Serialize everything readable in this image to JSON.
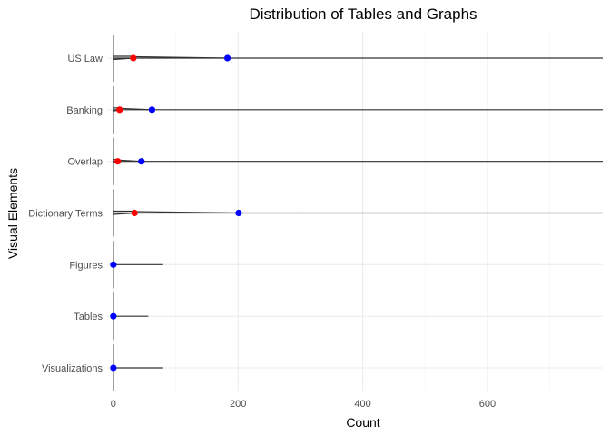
{
  "chart_data": {
    "type": "dot-range",
    "title": "Distribution of Tables and Graphs",
    "xlabel": "Count",
    "ylabel": "Visual Elements",
    "xlim": [
      -10,
      785
    ],
    "x_ticks": [
      0,
      200,
      400,
      600
    ],
    "x_minor_ticks": [
      100,
      300,
      500,
      700
    ],
    "grid": true,
    "categories": [
      "US Law",
      "Banking",
      "Overlap",
      "Dictionary Terms",
      "Figures",
      "Tables",
      "Visualizations"
    ],
    "markers": [
      {
        "category": "US Law",
        "red": 32,
        "blue": 183
      },
      {
        "category": "Banking",
        "red": 10,
        "blue": 62
      },
      {
        "category": "Overlap",
        "red": 7,
        "blue": 45
      },
      {
        "category": "Dictionary Terms",
        "red": 34,
        "blue": 201
      },
      {
        "category": "Figures",
        "red": null,
        "blue": 0
      },
      {
        "category": "Tables",
        "red": null,
        "blue": 0
      },
      {
        "category": "Visualizations",
        "red": null,
        "blue": 0
      }
    ],
    "ranges": [
      {
        "category": "US Law",
        "max": 800
      },
      {
        "category": "Banking",
        "max": 800
      },
      {
        "category": "Overlap",
        "max": 800
      },
      {
        "category": "Dictionary Terms",
        "max": 800
      },
      {
        "category": "Figures",
        "max": 80
      },
      {
        "category": "Tables",
        "max": 56
      },
      {
        "category": "Visualizations",
        "max": 80
      }
    ],
    "colors": {
      "red": "#ff0000",
      "blue": "#0000ff",
      "line": "#333333"
    }
  }
}
